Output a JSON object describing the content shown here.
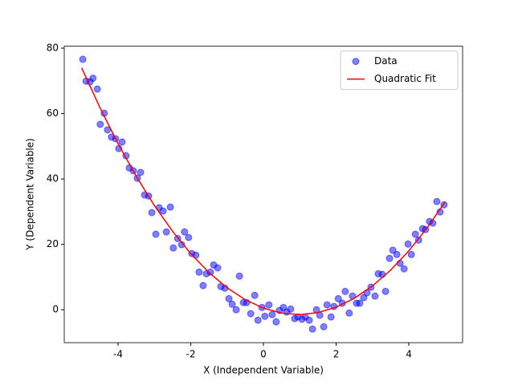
{
  "chart_data": {
    "type": "scatter",
    "xlabel": "X (Independent Variable)",
    "ylabel": "Y (Dependent Variable)",
    "xlim": [
      -5.48,
      5.48
    ],
    "ylim": [
      -10.06,
      80.6
    ],
    "xticks": [
      -4,
      -2,
      0,
      2,
      4
    ],
    "yticks": [
      0,
      20,
      40,
      60,
      80
    ],
    "legend": "upper right",
    "series": [
      {
        "name": "Data",
        "type": "scatter",
        "color": "#0000ff",
        "x": [
          -4.97,
          -4.88,
          -4.77,
          -4.69,
          -4.57,
          -4.49,
          -4.38,
          -4.29,
          -4.18,
          -4.07,
          -3.98,
          -3.89,
          -3.78,
          -3.69,
          -3.58,
          -3.47,
          -3.38,
          -3.27,
          -3.16,
          -3.07,
          -2.96,
          -2.87,
          -2.76,
          -2.67,
          -2.56,
          -2.48,
          -2.36,
          -2.25,
          -2.17,
          -2.06,
          -1.97,
          -1.86,
          -1.77,
          -1.66,
          -1.57,
          -1.46,
          -1.37,
          -1.26,
          -1.17,
          -1.06,
          -0.95,
          -0.86,
          -0.75,
          -0.66,
          -0.55,
          -0.46,
          -0.35,
          -0.24,
          -0.15,
          -0.04,
          0.04,
          0.15,
          0.24,
          0.35,
          0.44,
          0.55,
          0.64,
          0.75,
          0.86,
          0.95,
          1.06,
          1.15,
          1.26,
          1.35,
          1.46,
          1.55,
          1.66,
          1.75,
          1.86,
          1.94,
          2.06,
          2.17,
          2.25,
          2.36,
          2.45,
          2.56,
          2.65,
          2.76,
          2.85,
          2.96,
          3.07,
          3.16,
          3.27,
          3.36,
          3.47,
          3.56,
          3.67,
          3.76,
          3.87,
          3.98,
          4.07,
          4.18,
          4.27,
          4.38,
          4.46,
          4.57,
          4.66,
          4.77,
          4.86,
          4.97
        ],
        "values": [
          76.6,
          69.9,
          69.7,
          70.8,
          67.5,
          56.7,
          60.1,
          55.0,
          52.8,
          52.3,
          49.3,
          51.3,
          47.1,
          43.4,
          42.5,
          40.2,
          42.0,
          35.1,
          34.8,
          29.7,
          23.1,
          31.2,
          30.2,
          23.8,
          31.4,
          18.9,
          21.8,
          19.9,
          23.8,
          22.1,
          17.2,
          16.7,
          11.5,
          7.4,
          11.0,
          11.5,
          13.7,
          12.8,
          7.1,
          6.6,
          3.4,
          1.7,
          0.0,
          10.3,
          2.2,
          2.2,
          -1.2,
          4.4,
          -3.2,
          0.7,
          -2.0,
          1.5,
          -1.5,
          -3.7,
          -0.2,
          0.7,
          -0.7,
          0.2,
          -2.7,
          -2.2,
          -2.9,
          -2.2,
          -3.2,
          -5.9,
          0.0,
          -1.7,
          -5.2,
          1.5,
          -2.2,
          1.0,
          3.4,
          2.0,
          5.6,
          -1.0,
          4.2,
          2.0,
          2.0,
          3.7,
          5.2,
          6.9,
          4.2,
          11.0,
          10.8,
          5.6,
          15.7,
          18.2,
          16.9,
          14.2,
          12.5,
          20.1,
          16.9,
          23.1,
          21.3,
          24.8,
          24.5,
          27.0,
          26.5,
          33.1,
          29.9,
          32.1
        ]
      },
      {
        "name": "Quadratic Fit",
        "type": "line",
        "color": "#ff0000",
        "x": [
          -5,
          -4.5,
          -4,
          -3.5,
          -3,
          -2.5,
          -2,
          -1.5,
          -1,
          -0.5,
          0,
          0.5,
          1,
          1.5,
          2,
          2.5,
          3,
          3.5,
          4,
          4.5,
          5
        ],
        "values": [
          74.0,
          61.88,
          50.82,
          40.82,
          31.88,
          24.0,
          17.18,
          11.42,
          6.72,
          3.08,
          0.5,
          -1.02,
          -1.48,
          -0.88,
          0.78,
          3.5,
          7.28,
          12.12,
          18.02,
          24.98,
          33.0
        ]
      }
    ]
  }
}
